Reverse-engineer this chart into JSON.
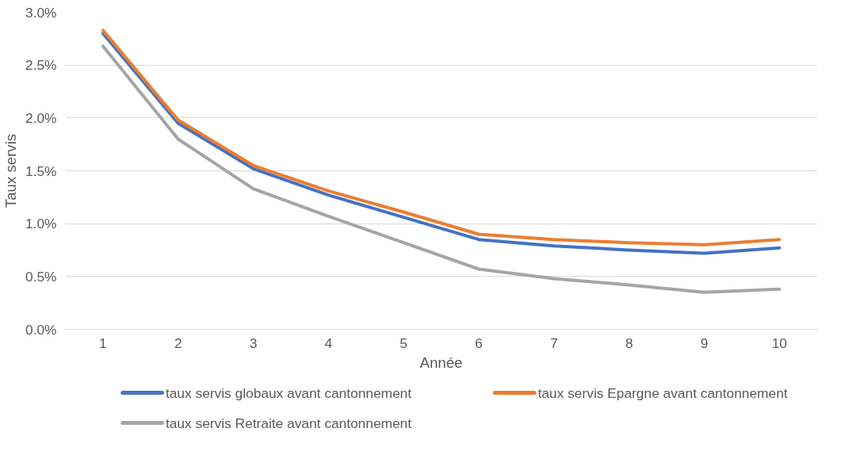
{
  "chart_data": {
    "type": "line",
    "xlabel": "Année",
    "ylabel": "Taux servis",
    "categories": [
      "1",
      "2",
      "3",
      "4",
      "5",
      "6",
      "7",
      "8",
      "9",
      "10"
    ],
    "series": [
      {
        "name": "taux servis globaux avant cantonnement",
        "color": "#4472c4",
        "values": [
          2.8,
          1.95,
          1.52,
          1.27,
          1.06,
          0.85,
          0.79,
          0.75,
          0.72,
          0.77
        ]
      },
      {
        "name": "taux servis Epargne avant cantonnement",
        "color": "#ed7d31",
        "values": [
          2.83,
          1.98,
          1.55,
          1.31,
          1.11,
          0.9,
          0.85,
          0.82,
          0.8,
          0.85
        ]
      },
      {
        "name": "taux servis Retraite avant cantonnement",
        "color": "#a5a5a5",
        "values": [
          2.68,
          1.8,
          1.33,
          1.07,
          0.82,
          0.57,
          0.48,
          0.42,
          0.35,
          0.38
        ]
      }
    ],
    "ylim": [
      0,
      3.0
    ],
    "yticks": [
      {
        "value": 0,
        "label": "0.0%"
      },
      {
        "value": 0.5,
        "label": "0.5%"
      },
      {
        "value": 1.0,
        "label": "1.0%"
      },
      {
        "value": 1.5,
        "label": "1.5%"
      },
      {
        "value": 2.0,
        "label": "2.0%"
      },
      {
        "value": 2.5,
        "label": "2.5%"
      },
      {
        "value": 3.0,
        "label": "3.0%"
      }
    ],
    "grid": "y",
    "legend": "bottom",
    "line_style": "solid",
    "marker": "none"
  }
}
